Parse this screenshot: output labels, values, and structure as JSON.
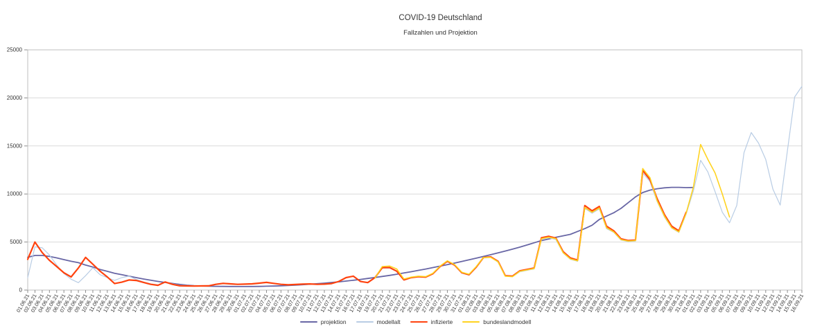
{
  "chart_data": {
    "type": "line",
    "title": "COVID-19 Deutschland",
    "subtitle": "Fallzahlen und Projektion",
    "xlabel": "",
    "ylabel": "",
    "ylim": [
      0,
      25000
    ],
    "y_ticks": [
      0,
      5000,
      10000,
      15000,
      20000,
      25000
    ],
    "grid": "horizontal",
    "legend_position": "bottom",
    "x_labels": [
      "01.06.21",
      "02.06.21",
      "03.06.21",
      "04.06.21",
      "05.06.21",
      "06.06.21",
      "07.06.21",
      "08.06.21",
      "09.06.21",
      "10.06.21",
      "11.06.21",
      "12.06.21",
      "13.06.21",
      "14.06.21",
      "15.06.21",
      "16.06.21",
      "17.06.21",
      "18.06.21",
      "19.06.21",
      "20.06.21",
      "21.06.21",
      "22.06.21",
      "23.06.21",
      "24.06.21",
      "25.06.21",
      "26.06.21",
      "27.06.21",
      "28.06.21",
      "29.06.21",
      "30.06.21",
      "01.07.21",
      "02.07.21",
      "03.07.21",
      "04.07.21",
      "05.07.21",
      "06.07.21",
      "07.07.21",
      "08.07.21",
      "09.07.21",
      "10.07.21",
      "11.07.21",
      "12.07.21",
      "13.07.21",
      "14.07.21",
      "15.07.21",
      "16.07.21",
      "17.07.21",
      "18.07.21",
      "19.07.21",
      "20.07.21",
      "21.07.21",
      "22.07.21",
      "23.07.21",
      "24.07.21",
      "25.07.21",
      "26.07.21",
      "27.07.21",
      "28.07.21",
      "29.07.21",
      "30.07.21",
      "31.07.21",
      "01.08.21",
      "02.08.21",
      "03.08.21",
      "04.08.21",
      "05.08.21",
      "06.08.21",
      "07.08.21",
      "08.08.21",
      "09.08.21",
      "10.08.21",
      "11.08.21",
      "12.08.21",
      "13.08.21",
      "14.08.21",
      "15.08.21",
      "16.08.21",
      "17.08.21",
      "18.08.21",
      "19.08.21",
      "20.08.21",
      "21.08.21",
      "22.08.21",
      "23.08.21",
      "24.08.21",
      "25.08.21",
      "26.08.21",
      "27.08.21",
      "28.08.21",
      "29.08.21",
      "30.08.21",
      "31.08.21",
      "01.09.21",
      "02.09.21",
      "03.09.21",
      "04.09.21",
      "05.09.21",
      "06.09.21",
      "07.09.21",
      "08.09.21",
      "09.09.21",
      "10.09.21",
      "11.09.21",
      "12.09.21",
      "13.09.21",
      "14.09.21",
      "15.09.21",
      "16.09.21"
    ],
    "series": [
      {
        "name": "projektion",
        "color": "#6866A5",
        "stroke_width": 1.8,
        "values": [
          3400,
          3600,
          3600,
          3500,
          3350,
          3170,
          3000,
          2850,
          2600,
          2400,
          2150,
          1950,
          1750,
          1600,
          1450,
          1300,
          1150,
          1020,
          900,
          790,
          690,
          590,
          510,
          455,
          425,
          405,
          390,
          380,
          375,
          370,
          370,
          375,
          385,
          400,
          420,
          450,
          480,
          520,
          560,
          610,
          660,
          720,
          790,
          860,
          940,
          1020,
          1110,
          1210,
          1310,
          1420,
          1530,
          1650,
          1780,
          1910,
          2050,
          2190,
          2340,
          2490,
          2650,
          2810,
          2980,
          3150,
          3320,
          3500,
          3680,
          3870,
          4060,
          4260,
          4470,
          4690,
          4920,
          5150,
          5320,
          5500,
          5650,
          5800,
          6100,
          6400,
          6750,
          7350,
          7700,
          8050,
          8500,
          9100,
          9700,
          10150,
          10400,
          10550,
          10640,
          10690,
          10690,
          10660,
          10680,
          null,
          null,
          null,
          null,
          null,
          null,
          null,
          null,
          null,
          null,
          null,
          null,
          null,
          null,
          null
        ]
      },
      {
        "name": "modellalt",
        "color": "#B8CCE4",
        "stroke_width": 1.2,
        "values": [
          1300,
          4500,
          4400,
          3650,
          2600,
          1730,
          1130,
          770,
          1500,
          2330,
          1600,
          1300,
          1000,
          1300,
          1450,
          1100,
          850,
          650,
          550,
          800,
          650,
          500,
          480,
          460,
          470,
          480,
          630,
          730,
          680,
          620,
          620,
          640,
          700,
          780,
          690,
          590,
          545,
          575,
          615,
          635,
          595,
          615,
          675,
          880,
          1280,
          1420,
          870,
          770,
          1280,
          2280,
          2300,
          1930,
          1040,
          1280,
          1380,
          1330,
          1680,
          2420,
          2960,
          2560,
          1760,
          1550,
          2350,
          3350,
          3400,
          2900,
          1450,
          1380,
          1900,
          2050,
          2200,
          5300,
          5450,
          5250,
          3850,
          3200,
          3000,
          8500,
          8000,
          8450,
          6400,
          6000,
          5200,
          5050,
          5100,
          12200,
          11300,
          9200,
          7600,
          6450,
          6000,
          7900,
          10300,
          13500,
          12300,
          10250,
          8100,
          7000,
          8800,
          14300,
          16400,
          15300,
          13600,
          10500,
          8850,
          14500,
          20100,
          21200
        ]
      },
      {
        "name": "infizierte",
        "color": "#FF420E",
        "stroke_width": 2.2,
        "values": [
          3200,
          5000,
          3900,
          3100,
          2450,
          1800,
          1370,
          2300,
          3400,
          2690,
          1970,
          1370,
          680,
          820,
          1050,
          1000,
          800,
          600,
          500,
          840,
          600,
          450,
          430,
          420,
          430,
          440,
          600,
          700,
          650,
          600,
          620,
          650,
          720,
          800,
          700,
          600,
          550,
          580,
          620,
          640,
          600,
          620,
          680,
          900,
          1300,
          1450,
          890,
          780,
          1300,
          2330,
          2350,
          1970,
          1060,
          1300,
          1400,
          1350,
          1700,
          2450,
          3000,
          2600,
          1800,
          1600,
          2400,
          3400,
          3450,
          3000,
          1500,
          1450,
          2000,
          2150,
          2300,
          5450,
          5600,
          5400,
          4000,
          3340,
          3120,
          8800,
          8250,
          8700,
          6650,
          6170,
          5330,
          5160,
          5200,
          12450,
          11500,
          9500,
          7850,
          6650,
          6170,
          8100,
          null,
          null,
          null,
          null,
          null,
          null,
          null,
          null,
          null,
          null,
          null,
          null,
          null,
          null,
          null,
          null
        ]
      },
      {
        "name": "bundeslandmodell",
        "color": "#FFD320",
        "stroke_width": 1.6,
        "values": [
          null,
          null,
          null,
          null,
          null,
          null,
          null,
          null,
          null,
          null,
          null,
          null,
          null,
          null,
          null,
          null,
          null,
          null,
          null,
          null,
          null,
          null,
          null,
          null,
          null,
          null,
          null,
          null,
          null,
          null,
          null,
          null,
          null,
          null,
          null,
          null,
          null,
          null,
          null,
          null,
          null,
          null,
          null,
          null,
          null,
          null,
          null,
          null,
          1250,
          2450,
          2500,
          2200,
          1150,
          1350,
          1450,
          1400,
          1750,
          2500,
          3050,
          2650,
          1850,
          1650,
          2450,
          3400,
          3400,
          2950,
          1450,
          1400,
          1950,
          2100,
          2250,
          5350,
          5500,
          5350,
          3900,
          3250,
          3050,
          8600,
          8100,
          8550,
          6500,
          6050,
          5250,
          5100,
          5150,
          12650,
          11700,
          9300,
          7700,
          6500,
          6050,
          8000,
          10700,
          15150,
          13600,
          12200,
          10000,
          7600,
          null,
          null,
          null,
          null,
          null,
          null,
          null,
          null,
          null,
          null
        ]
      }
    ]
  }
}
